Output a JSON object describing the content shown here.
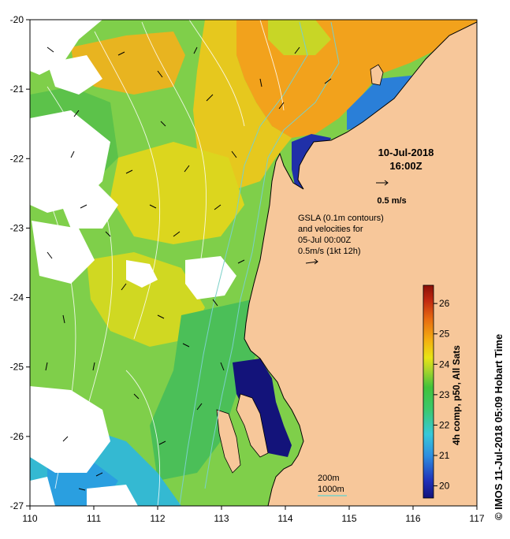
{
  "chart_data": {
    "type": "heatmap",
    "xlim": [
      110,
      117
    ],
    "ylim": [
      -27,
      -20
    ],
    "x_ticks": [
      "110",
      "111",
      "112",
      "113",
      "114",
      "115",
      "116",
      "117"
    ],
    "y_ticks": [
      "-20",
      "-21",
      "-22",
      "-23",
      "-24",
      "-25",
      "-26",
      "-27"
    ],
    "colorbar": {
      "ticks": [
        "26",
        "25",
        "24",
        "23",
        "22",
        "21",
        "20"
      ],
      "range": [
        19.6,
        26.6
      ],
      "label": "4h comp, p50, All Sats"
    },
    "date_line1": "10-Jul-2018",
    "date_line2": "16:00Z",
    "scale_label": "0.5 m/s",
    "gsla_lines": [
      "GSLA (0.1m contours)",
      "and velocities for",
      "05-Jul 00:00Z",
      "0.5m/s (1kt 12h)"
    ],
    "depth_labels": [
      "200m",
      "1000m"
    ],
    "credit": "© IMOS 11-Jul-2018 05:09 Hobart Time",
    "colors": {
      "land": "#f7c79a",
      "cloud": "#ffffff",
      "depth_200": "#7ad0c8",
      "depth_1000": "#7ad0c8"
    }
  }
}
